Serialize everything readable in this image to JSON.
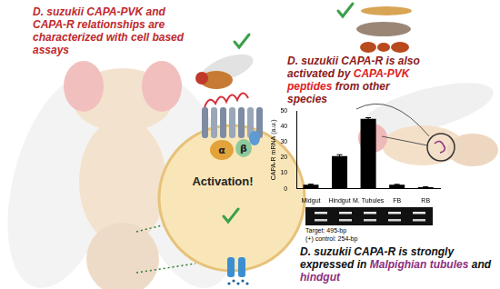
{
  "captions": [
    {
      "segments": [
        {
          "text": "D. suzukii CAPA-PVK and CAPA-R relationships are characterized with cell based assays",
          "color": "#c0282d"
        }
      ]
    },
    {
      "segments": [
        {
          "text": "D. suzukii CAPA-R is also activated by",
          "color": "#8b1a1a"
        },
        {
          "text": "CAPA-PVK peptides",
          "color": "#e0201e"
        },
        {
          "text": "from other species",
          "color": "#8b1a1a"
        }
      ]
    },
    {
      "segments": [
        {
          "text": "D. suzukii CAPA-R is strongly expressed in",
          "color": "#111111"
        },
        {
          "text": "Malpighian tubules",
          "color": "#8e2f7e"
        },
        {
          "text": "and",
          "color": "#111111"
        },
        {
          "text": "hindgut",
          "color": "#8e2f7e"
        }
      ]
    }
  ],
  "cell": {
    "label": "Activation!",
    "subunits": [
      "α",
      "β"
    ]
  },
  "chart_data": {
    "type": "bar",
    "y_label": "CAPA-R mRNA (a.u.)",
    "categories": [
      "Midgut",
      "Hindgut",
      "M. Tubules",
      "FB",
      "RB"
    ],
    "values": [
      2.5,
      21,
      45,
      2.5,
      1
    ],
    "errors": [
      0.4,
      0.9,
      0.7,
      0.3,
      0.2
    ],
    "color": "#000000",
    "ylim": [
      0,
      50
    ],
    "yticks": [
      0,
      10,
      20,
      30,
      40,
      50
    ],
    "grid": false
  },
  "gel": {
    "labels": [
      "Target: 495-bp",
      "(+) control: 254-bp"
    ]
  }
}
